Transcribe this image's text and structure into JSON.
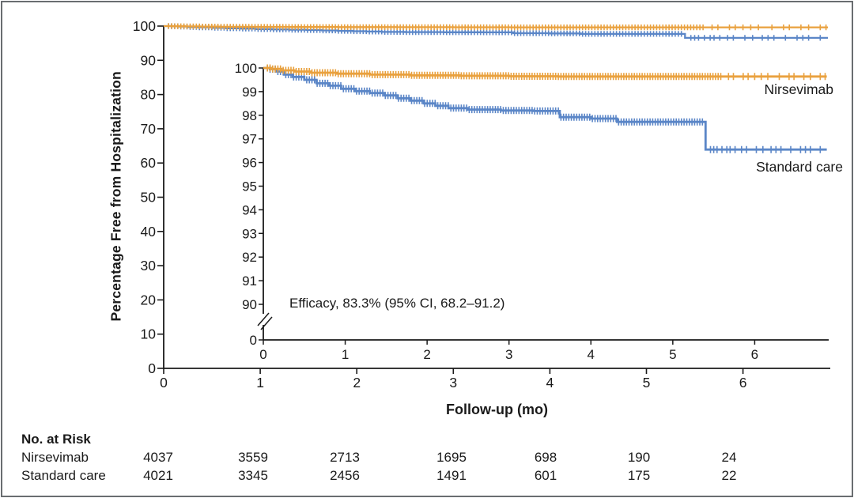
{
  "figure": {
    "y_axis_title": "Percentage Free from Hospitalization",
    "x_axis_title": "Follow-up (mo)",
    "annotation": "Efficacy, 83.3% (95% CI, 68.2–91.2)",
    "series_label_nirsevimab": "Nirsevimab",
    "series_label_standard_care": "Standard care"
  },
  "chart_data": {
    "type": "line",
    "subtype": "kaplan-meier-step-with-inset",
    "title": "",
    "xlabel": "Follow-up (mo)",
    "ylabel": "Percentage Free from Hospitalization",
    "annotation": "Efficacy, 83.3% (95% CI, 68.2–91.2)",
    "legend_position": "right-of-curves",
    "grid": false,
    "main_axis": {
      "xlim": [
        0,
        6.9
      ],
      "ylim": [
        0,
        100
      ],
      "xticks": [
        0,
        1,
        2,
        3,
        4,
        5,
        6
      ],
      "yticks": [
        0,
        10,
        20,
        30,
        40,
        50,
        60,
        70,
        80,
        90,
        100
      ]
    },
    "inset_axis": {
      "xlim": [
        0,
        6.9
      ],
      "ylim": [
        90,
        100
      ],
      "axis_break_below": 90,
      "broken_to_tick": 0,
      "xticks": [
        0,
        1,
        2,
        3,
        4,
        5,
        6
      ],
      "yticks": [
        90,
        91,
        92,
        93,
        94,
        95,
        96,
        97,
        98,
        99,
        100
      ]
    },
    "censor_dense_step": 0.032,
    "series": [
      {
        "name": "Standard care",
        "color": "#5B86C7",
        "points": [
          [
            0,
            100
          ],
          [
            0.08,
            99.95
          ],
          [
            0.16,
            99.85
          ],
          [
            0.25,
            99.72
          ],
          [
            0.36,
            99.62
          ],
          [
            0.5,
            99.5
          ],
          [
            0.65,
            99.35
          ],
          [
            0.8,
            99.25
          ],
          [
            0.95,
            99.12
          ],
          [
            1.12,
            99.02
          ],
          [
            1.3,
            98.94
          ],
          [
            1.48,
            98.84
          ],
          [
            1.64,
            98.72
          ],
          [
            1.8,
            98.62
          ],
          [
            1.96,
            98.5
          ],
          [
            2.1,
            98.4
          ],
          [
            2.26,
            98.3
          ],
          [
            2.5,
            98.24
          ],
          [
            2.9,
            98.2
          ],
          [
            3.3,
            98.18
          ],
          [
            3.62,
            97.92
          ],
          [
            4.0,
            97.86
          ],
          [
            4.32,
            97.72
          ],
          [
            5.4,
            96.55
          ],
          [
            6.88,
            96.55
          ]
        ],
        "censor_dense_from": 0.05,
        "censor_dense_until": 5.38,
        "censor_sparse": [
          5.46,
          5.5,
          5.54,
          5.6,
          5.66,
          5.7,
          5.76,
          5.84,
          5.9,
          6.02,
          6.1,
          6.2,
          6.26,
          6.32,
          6.44,
          6.56,
          6.62,
          6.68,
          6.8
        ]
      },
      {
        "name": "Nirsevimab",
        "color": "#E9A13E",
        "points": [
          [
            0,
            100
          ],
          [
            0.1,
            99.96
          ],
          [
            0.22,
            99.9
          ],
          [
            0.38,
            99.85
          ],
          [
            0.58,
            99.8
          ],
          [
            0.9,
            99.76
          ],
          [
            1.3,
            99.72
          ],
          [
            1.8,
            99.69
          ],
          [
            2.4,
            99.67
          ],
          [
            3.0,
            99.65
          ],
          [
            3.6,
            99.64
          ],
          [
            6.88,
            99.64
          ]
        ],
        "censor_dense_from": 0.05,
        "censor_dense_until": 5.6,
        "censor_sparse": [
          5.68,
          5.74,
          5.86,
          5.92,
          6.0,
          6.08,
          6.16,
          6.3,
          6.42,
          6.48,
          6.6,
          6.68,
          6.8,
          6.86
        ]
      }
    ]
  },
  "risk_table": {
    "title": "No. at Risk",
    "rows": [
      {
        "label": "Nirsevimab",
        "values": [
          "4037",
          "3559",
          "2713",
          "1695",
          "698",
          "190",
          "24"
        ]
      },
      {
        "label": "Standard care",
        "values": [
          "4021",
          "3345",
          "2456",
          "1491",
          "601",
          "175",
          "22"
        ]
      }
    ]
  }
}
